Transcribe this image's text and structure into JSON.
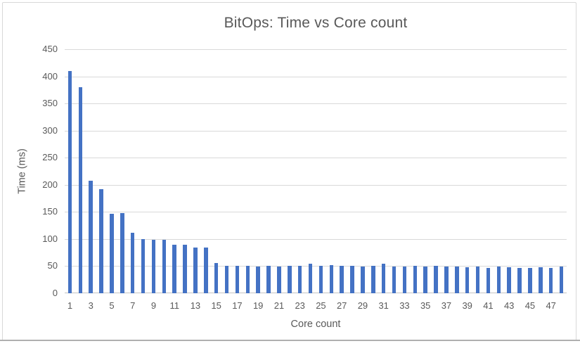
{
  "chart_data": {
    "type": "bar",
    "title": "BitOps: Time vs Core count",
    "xlabel": "Core count",
    "ylabel": "Time (ms)",
    "x": [
      1,
      2,
      3,
      4,
      5,
      6,
      7,
      8,
      9,
      10,
      11,
      12,
      13,
      14,
      15,
      16,
      17,
      18,
      19,
      20,
      21,
      22,
      23,
      24,
      25,
      26,
      27,
      28,
      29,
      30,
      31,
      32,
      33,
      34,
      35,
      36,
      37,
      38,
      39,
      40,
      41,
      42,
      43,
      44,
      45,
      46,
      47,
      48
    ],
    "values": [
      410,
      380,
      208,
      192,
      147,
      148,
      112,
      100,
      99,
      99,
      90,
      90,
      84,
      84,
      56,
      50,
      50,
      50,
      49,
      50,
      49,
      50,
      50,
      54,
      51,
      52,
      50,
      50,
      49,
      50,
      55,
      49,
      49,
      50,
      49,
      50,
      49,
      49,
      48,
      49,
      47,
      49,
      48,
      47,
      47,
      48,
      47,
      49
    ],
    "ylim": [
      0,
      450
    ],
    "yticks": [
      0,
      50,
      100,
      150,
      200,
      250,
      300,
      350,
      400,
      450
    ],
    "xticks": [
      1,
      3,
      5,
      7,
      9,
      11,
      13,
      15,
      17,
      19,
      21,
      23,
      25,
      27,
      29,
      31,
      33,
      35,
      37,
      39,
      41,
      43,
      45,
      47
    ],
    "grid": true,
    "legend": false,
    "colors": {
      "bar": "#4472C4",
      "gridline": "#D9D9D9",
      "axis_line": "#C3C3C3",
      "text": "#595959",
      "panel_border": "#D8D8D8"
    }
  }
}
